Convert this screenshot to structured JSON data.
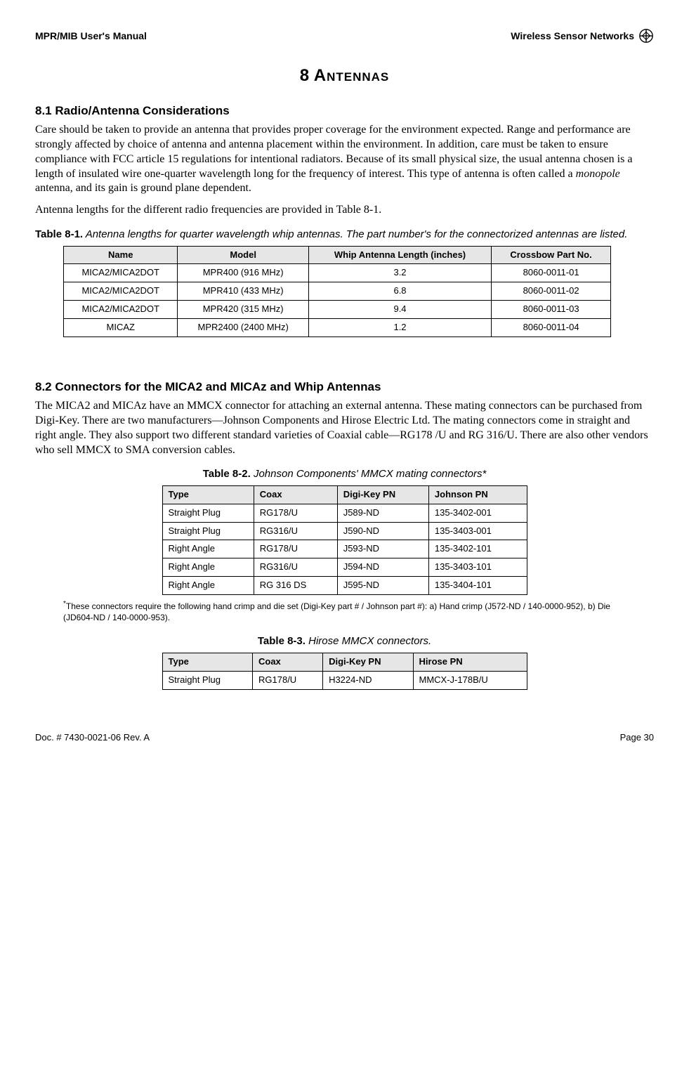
{
  "header": {
    "left": "MPR/MIB User's Manual",
    "right": "Wireless Sensor Networks"
  },
  "chapter": {
    "num": "8",
    "title": "Antennas"
  },
  "sec1": {
    "heading": "8.1     Radio/Antenna Considerations",
    "p1a": "Care should be taken to provide an antenna that provides proper coverage for the environment expected. Range and performance are strongly affected by choice of antenna and antenna placement within the environment. In addition, care must be taken to ensure compliance with FCC article 15 regulations for intentional radiators. Because of its small physical size, the usual antenna chosen is a length of insulated wire one-quarter wavelength long for the frequency of interest. This type of antenna is often called a ",
    "p1b": "monopole",
    "p1c": " antenna, and its gain is ground plane dependent.",
    "p2": "Antenna lengths for the different radio frequencies are provided in Table 8-1."
  },
  "table1": {
    "caption_bold": "Table 8-1.",
    "caption_it": " Antenna lengths for quarter wavelength whip antennas. The part number's for the connectorized antennas are listed.",
    "headers": [
      "Name",
      "Model",
      "Whip Antenna Length (inches)",
      "Crossbow Part No."
    ],
    "rows": [
      [
        "MICA2/MICA2DOT",
        "MPR400 (916 MHz)",
        "3.2",
        "8060-0011-01"
      ],
      [
        "MICA2/MICA2DOT",
        "MPR410 (433 MHz)",
        "6.8",
        "8060-0011-02"
      ],
      [
        "MICA2/MICA2DOT",
        "MPR420 (315 MHz)",
        "9.4",
        "8060-0011-03"
      ],
      [
        "MICAZ",
        "MPR2400 (2400 MHz)",
        "1.2",
        "8060-0011-04"
      ]
    ]
  },
  "sec2": {
    "heading": "8.2     Connectors for the MICA2 and MICAz and Whip Antennas",
    "p1": "The MICA2 and MICAz have an MMCX connector for attaching an external antenna. These mating connectors can be purchased from Digi-Key. There are two manufacturers—Johnson Components and Hirose Electric Ltd. The mating connectors come in straight and right angle. They also support two different standard varieties of Coaxial cable—RG178 /U and RG 316/U. There are also other vendors who sell MMCX to SMA conversion cables."
  },
  "table2": {
    "caption_bold": "Table 8-2.",
    "caption_it": " Johnson Components' MMCX mating connectors*",
    "headers": [
      "Type",
      "Coax",
      "Digi-Key PN",
      "Johnson PN"
    ],
    "rows": [
      [
        "Straight Plug",
        "RG178/U",
        "J589-ND",
        "135-3402-001"
      ],
      [
        "Straight Plug",
        "RG316/U",
        "J590-ND",
        "135-3403-001"
      ],
      [
        "Right Angle",
        "RG178/U",
        "J593-ND",
        "135-3402-101"
      ],
      [
        "Right Angle",
        "RG316/U",
        "J594-ND",
        "135-3403-101"
      ],
      [
        "Right Angle",
        "RG 316 DS",
        "J595-ND",
        "135-3404-101"
      ]
    ],
    "footnote": "These connectors require the following hand crimp and die set (Digi-Key part # / Johnson part #): a) Hand crimp (J572-ND / 140-0000-952), b) Die (JD604-ND / 140-0000-953)."
  },
  "table3": {
    "caption_bold": "Table 8-3.",
    "caption_it": " Hirose MMCX connectors.",
    "headers": [
      "Type",
      "Coax",
      "Digi-Key PN",
      "Hirose PN"
    ],
    "rows": [
      [
        "Straight Plug",
        "RG178/U",
        "H3224-ND",
        "MMCX-J-178B/U"
      ]
    ]
  },
  "footer": {
    "left": "Doc. # 7430-0021-06 Rev. A",
    "right": "Page 30"
  },
  "colors": {
    "header_bg": "#e6e6e6",
    "border": "#000000"
  }
}
